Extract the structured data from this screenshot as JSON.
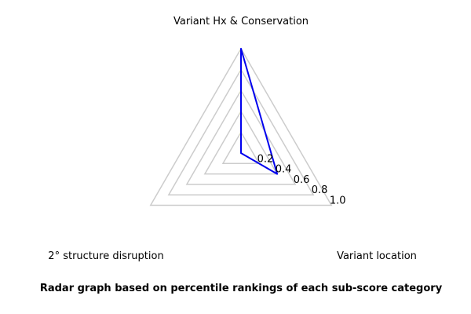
{
  "chart_data": {
    "type": "radar",
    "caption": "Radar graph based on percentile rankings of each sub-score category",
    "axes": [
      "Variant Hx & Conservation",
      "Variant location",
      "2° structure disruption"
    ],
    "values": [
      1.0,
      0.4,
      0.0
    ],
    "rlim": [
      0,
      1.0
    ],
    "ticks": [
      {
        "value": 0.2,
        "label": "0.2"
      },
      {
        "value": 0.4,
        "label": "0.4"
      },
      {
        "value": 0.6,
        "label": "0.6"
      },
      {
        "value": 0.8,
        "label": "0.8"
      },
      {
        "value": 1.0,
        "label": "1.0"
      }
    ],
    "grid": true,
    "colors": {
      "series": "#0000ee",
      "grid": "#cccccc",
      "text": "#000000"
    }
  }
}
